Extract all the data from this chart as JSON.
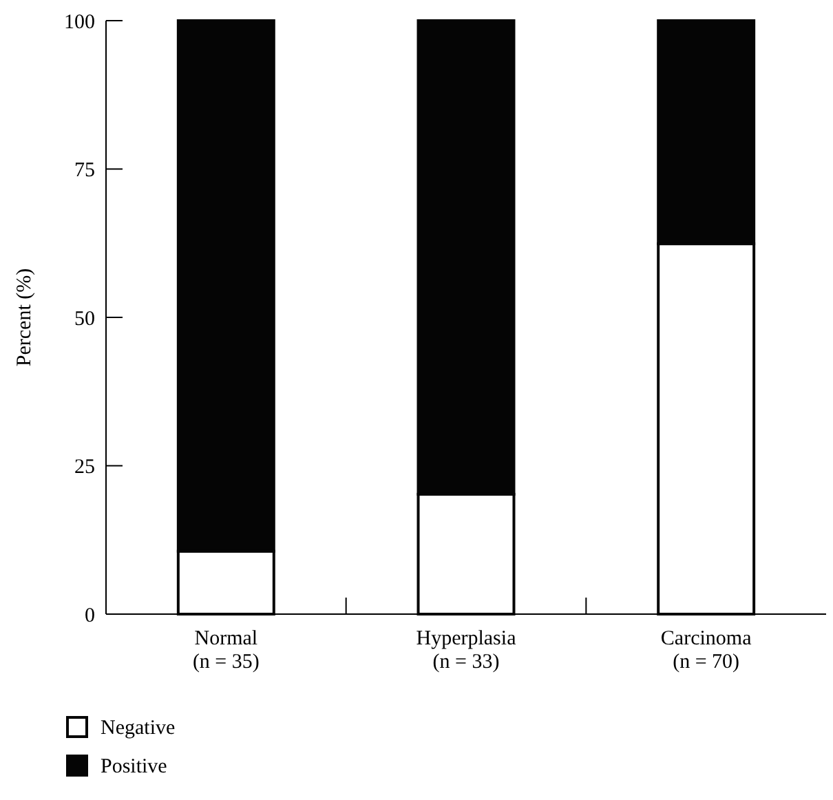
{
  "chart_data": {
    "type": "bar",
    "stacked": true,
    "ylabel": "Percent (%)",
    "categories": [
      "Normal (n = 35)",
      "Hyperplasia (n = 33)",
      "Carcinoma (n = 70)"
    ],
    "series": [
      {
        "name": "Negative",
        "color": "#ffffff",
        "values": [
          10.6,
          20.2,
          62.4
        ]
      },
      {
        "name": "Positive",
        "color": "#050505",
        "values": [
          89.4,
          79.8,
          37.6
        ]
      }
    ],
    "ylim": [
      0,
      100
    ],
    "yticks": [
      0,
      25,
      50,
      75,
      100
    ],
    "grid": false,
    "legend": "bottom left"
  }
}
